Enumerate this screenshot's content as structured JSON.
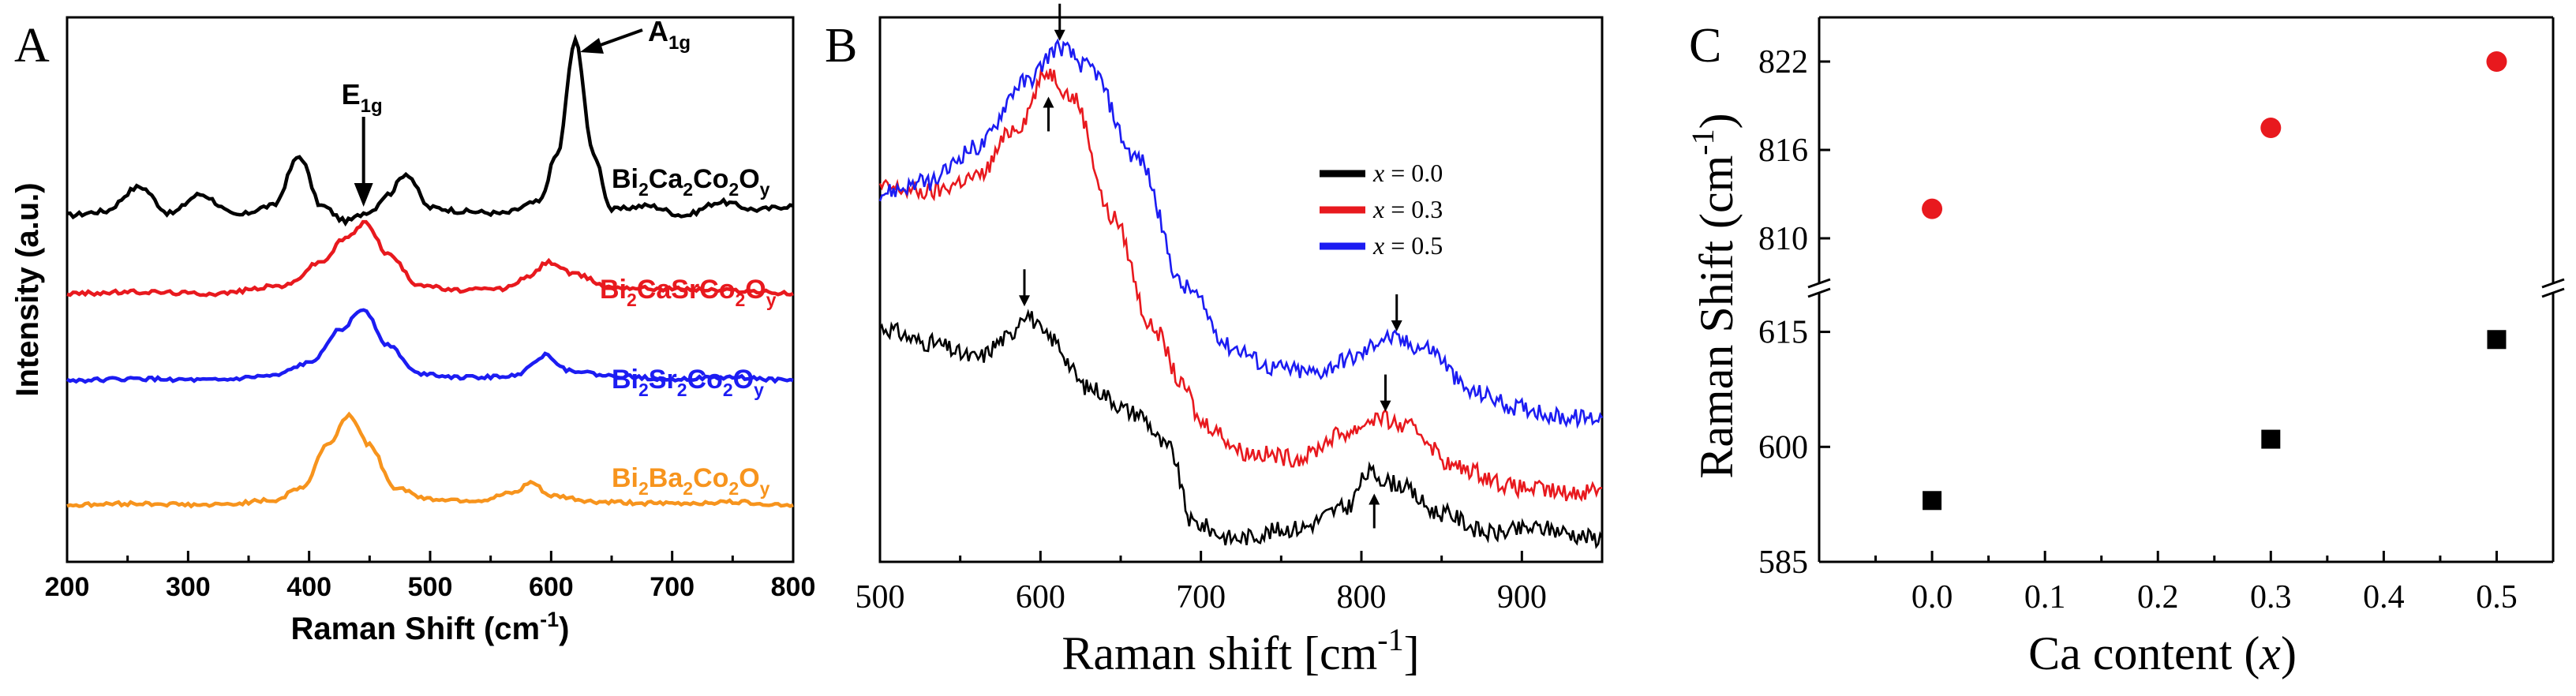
{
  "chart_data": [
    {
      "panel": "A",
      "type": "line",
      "xlabel": "Raman Shift (cm",
      "xlabel_sup": "-1",
      "xlabel_end": ")",
      "ylabel": "Intensity (a.u.)",
      "xlim": [
        200,
        800
      ],
      "xticks": [
        "200",
        "300",
        "400",
        "500",
        "600",
        "700",
        "800"
      ],
      "annotations": [
        {
          "text": "E",
          "sub": "1g",
          "x": 445
        },
        {
          "text": "A",
          "sub": "1g",
          "x": 620
        }
      ],
      "series": [
        {
          "name": "Bi2Ca2Co2Oy",
          "label_parts": [
            [
              "Bi",
              ""
            ],
            [
              "2",
              "sub"
            ],
            [
              "Ca",
              ""
            ],
            [
              "2",
              "sub"
            ],
            [
              "Co",
              ""
            ],
            [
              "2",
              "sub"
            ],
            [
              "O",
              ""
            ],
            [
              "y",
              "sub"
            ]
          ],
          "color": "#000000",
          "points": [
            [
              200,
              0.03
            ],
            [
              230,
              0.05
            ],
            [
              260,
              0.18
            ],
            [
              285,
              0.04
            ],
            [
              310,
              0.14
            ],
            [
              340,
              0.03
            ],
            [
              370,
              0.08
            ],
            [
              392,
              0.34
            ],
            [
              410,
              0.08
            ],
            [
              430,
              0.0
            ],
            [
              450,
              0.05
            ],
            [
              465,
              0.14
            ],
            [
              480,
              0.25
            ],
            [
              500,
              0.07
            ],
            [
              530,
              0.05
            ],
            [
              560,
              0.04
            ],
            [
              590,
              0.1
            ],
            [
              605,
              0.35
            ],
            [
              620,
              0.95
            ],
            [
              635,
              0.35
            ],
            [
              650,
              0.06
            ],
            [
              680,
              0.08
            ],
            [
              710,
              0.03
            ],
            [
              740,
              0.1
            ],
            [
              770,
              0.06
            ],
            [
              800,
              0.08
            ]
          ]
        },
        {
          "name": "Bi2CaSrCo2Oy",
          "label_parts": [
            [
              "Bi",
              ""
            ],
            [
              "2",
              "sub"
            ],
            [
              "CaSrCo",
              ""
            ],
            [
              "2",
              "sub"
            ],
            [
              "O",
              ""
            ],
            [
              "y",
              "sub"
            ]
          ],
          "color": "#e8191e",
          "points": [
            [
              200,
              0.0
            ],
            [
              260,
              0.01
            ],
            [
              320,
              0.0
            ],
            [
              380,
              0.05
            ],
            [
              410,
              0.2
            ],
            [
              430,
              0.35
            ],
            [
              447,
              0.45
            ],
            [
              465,
              0.25
            ],
            [
              490,
              0.06
            ],
            [
              520,
              0.02
            ],
            [
              560,
              0.03
            ],
            [
              580,
              0.1
            ],
            [
              598,
              0.2
            ],
            [
              620,
              0.12
            ],
            [
              650,
              0.04
            ],
            [
              700,
              0.03
            ],
            [
              750,
              0.02
            ],
            [
              800,
              0.0
            ]
          ]
        },
        {
          "name": "Bi2Sr2Co2Oy",
          "label_parts": [
            [
              "Bi",
              ""
            ],
            [
              "2",
              "sub"
            ],
            [
              "Sr",
              ""
            ],
            [
              "2",
              "sub"
            ],
            [
              "Co",
              ""
            ],
            [
              "2",
              "sub"
            ],
            [
              "O",
              ""
            ],
            [
              "y",
              "sub"
            ]
          ],
          "color": "#1c1cf2",
          "points": [
            [
              200,
              0.0
            ],
            [
              260,
              0.01
            ],
            [
              320,
              0.0
            ],
            [
              370,
              0.03
            ],
            [
              400,
              0.12
            ],
            [
              425,
              0.35
            ],
            [
              445,
              0.5
            ],
            [
              465,
              0.25
            ],
            [
              490,
              0.05
            ],
            [
              530,
              0.02
            ],
            [
              570,
              0.03
            ],
            [
              585,
              0.12
            ],
            [
              595,
              0.18
            ],
            [
              615,
              0.07
            ],
            [
              650,
              0.03
            ],
            [
              700,
              0.01
            ],
            [
              750,
              0.02
            ],
            [
              800,
              0.0
            ]
          ]
        },
        {
          "name": "Bi2Ba2Co2Oy",
          "label_parts": [
            [
              "Bi",
              ""
            ],
            [
              "2",
              "sub"
            ],
            [
              "Ba",
              ""
            ],
            [
              "2",
              "sub"
            ],
            [
              "Co",
              ""
            ],
            [
              "2",
              "sub"
            ],
            [
              "O",
              ""
            ],
            [
              "y",
              "sub"
            ]
          ],
          "color": "#f7941d",
          "points": [
            [
              200,
              0.0
            ],
            [
              260,
              0.01
            ],
            [
              320,
              0.0
            ],
            [
              370,
              0.03
            ],
            [
              395,
              0.12
            ],
            [
              415,
              0.4
            ],
            [
              433,
              0.6
            ],
            [
              450,
              0.4
            ],
            [
              470,
              0.12
            ],
            [
              500,
              0.04
            ],
            [
              540,
              0.03
            ],
            [
              570,
              0.08
            ],
            [
              583,
              0.15
            ],
            [
              600,
              0.06
            ],
            [
              640,
              0.02
            ],
            [
              700,
              0.01
            ],
            [
              750,
              0.02
            ],
            [
              800,
              0.0
            ]
          ]
        }
      ]
    },
    {
      "panel": "B",
      "type": "line",
      "xlabel": "Raman shift [cm",
      "xlabel_sup": "-1",
      "xlabel_end": "]",
      "xlim": [
        500,
        950
      ],
      "xticks": [
        "500",
        "600",
        "700",
        "800",
        "900"
      ],
      "legend": [
        {
          "var": "x",
          "text": " = 0.0",
          "color": "#000000"
        },
        {
          "var": "x",
          "text": " = 0.3",
          "color": "#e8191e"
        },
        {
          "var": "x",
          "text": " = 0.5",
          "color": "#1c1cf2"
        }
      ],
      "series": [
        {
          "name": "x = 0.0",
          "color": "#000000",
          "points": [
            [
              500,
              0.42
            ],
            [
              530,
              0.39
            ],
            [
              560,
              0.36
            ],
            [
              580,
              0.4
            ],
            [
              590,
              0.45
            ],
            [
              605,
              0.4
            ],
            [
              630,
              0.3
            ],
            [
              660,
              0.25
            ],
            [
              680,
              0.18
            ],
            [
              695,
              0.03
            ],
            [
              720,
              0.0
            ],
            [
              760,
              0.02
            ],
            [
              790,
              0.06
            ],
            [
              805,
              0.13
            ],
            [
              820,
              0.11
            ],
            [
              850,
              0.05
            ],
            [
              880,
              0.01
            ],
            [
              910,
              0.02
            ],
            [
              950,
              0.0
            ]
          ]
        },
        {
          "name": "x = 0.3",
          "color": "#e8191e",
          "points": [
            [
              500,
              0.7
            ],
            [
              530,
              0.69
            ],
            [
              560,
              0.72
            ],
            [
              585,
              0.82
            ],
            [
              605,
              0.93
            ],
            [
              620,
              0.88
            ],
            [
              645,
              0.64
            ],
            [
              670,
              0.42
            ],
            [
              690,
              0.3
            ],
            [
              700,
              0.23
            ],
            [
              730,
              0.17
            ],
            [
              760,
              0.16
            ],
            [
              790,
              0.21
            ],
            [
              810,
              0.24
            ],
            [
              830,
              0.22
            ],
            [
              860,
              0.14
            ],
            [
              900,
              0.1
            ],
            [
              930,
              0.09
            ],
            [
              950,
              0.1
            ]
          ]
        },
        {
          "name": "x = 0.5",
          "color": "#1c1cf2",
          "points": [
            [
              500,
              0.69
            ],
            [
              530,
              0.71
            ],
            [
              560,
              0.78
            ],
            [
              590,
              0.91
            ],
            [
              612,
              0.98
            ],
            [
              630,
              0.94
            ],
            [
              660,
              0.76
            ],
            [
              690,
              0.5
            ],
            [
              720,
              0.38
            ],
            [
              745,
              0.34
            ],
            [
              770,
              0.33
            ],
            [
              795,
              0.36
            ],
            [
              815,
              0.4
            ],
            [
              840,
              0.38
            ],
            [
              870,
              0.29
            ],
            [
              900,
              0.26
            ],
            [
              930,
              0.24
            ],
            [
              950,
              0.24
            ]
          ]
        }
      ]
    },
    {
      "panel": "C",
      "type": "scatter",
      "xlabel": "Ca content (",
      "xlabel_var": "x",
      "xlabel_end": ")",
      "ylabel": "Raman Shift (cm",
      "ylabel_sup": "-1",
      "ylabel_end": ")",
      "xlim": [
        -0.1,
        0.55
      ],
      "xticks": [
        "0.0",
        "0.1",
        "0.2",
        "0.3",
        "0.4",
        "0.5"
      ],
      "upper_ylim": [
        807,
        825
      ],
      "upper_yticks": [
        "810",
        "816",
        "822"
      ],
      "lower_ylim": [
        585,
        620
      ],
      "lower_yticks": [
        "585",
        "600",
        "615"
      ],
      "series": [
        {
          "name": "A1g",
          "color": "#e8191e",
          "marker": "circle",
          "x": [
            0.0,
            0.3,
            0.5
          ],
          "y": [
            812.0,
            817.5,
            822.0
          ]
        },
        {
          "name": "E1g",
          "color": "#000000",
          "marker": "square",
          "x": [
            0.0,
            0.3,
            0.5
          ],
          "y": [
            593.0,
            601.0,
            614.0
          ]
        }
      ]
    }
  ],
  "panel_letters": {
    "a": "A",
    "b": "B",
    "c": "C"
  }
}
